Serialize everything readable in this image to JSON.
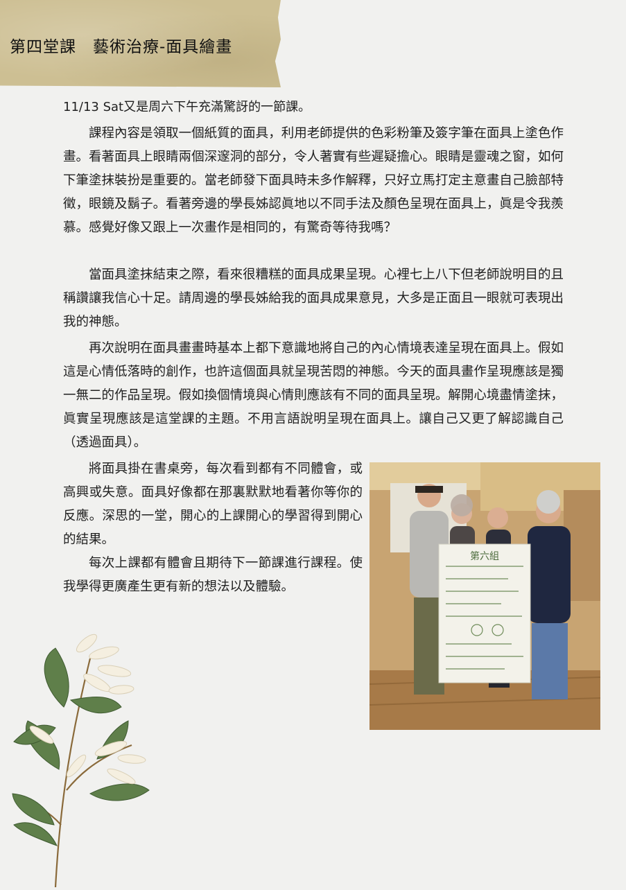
{
  "header": {
    "title": "第四堂課　藝術治療-面具繪畫"
  },
  "content": {
    "date_line": "11/13 Sat又是周六下午充滿驚訝的一節課。",
    "paragraphs": [
      "課程內容是領取一個紙質的面具，利用老師提供的色彩粉筆及簽字筆在面具上塗色作畫。看著面具上眼睛兩個深邃洞的部分，令人著實有些遲疑擔心。眼睛是靈魂之窗，如何下筆塗抹裝扮是重要的。當老師發下面具時未多作解釋，只好立馬打定主意畫自己臉部特徵，眼鏡及鬍子。看著旁邊的學長姊認眞地以不同手法及顏色呈現在面具上，眞是令我羨慕。感覺好像又跟上一次畫作是相同的，有驚奇等待我嗎？",
      "當面具塗抹結束之際，看來很糟糕的面具成果呈現。心裡七上八下但老師說明目的且稱讚讓我信心十足。請周邊的學長姊給我的面具成果意見，大多是正面且一眼就可表現出我的神態。",
      "再次說明在面具畫畫時基本上都下意識地將自己的內心情境表達呈現在面具上。假如這是心情低落時的創作，也許這個面具就呈現苦悶的神態。今天的面具畫作呈現應該是獨一無二的作品呈現。假如換個情境與心情則應該有不同的面具呈現。解開心境盡情塗抹， 眞實呈現應該是這堂課的主題。不用言語說明呈現在面具上。讓自己又更了解認識自己（透過面具）。",
      "將面具掛在書桌旁，每次看到都有不同體會，或高興或失意。面具好像都在那裏默默地看著你等你的反應。深思的一堂，開心的上課開心的學習得到開心的結果。",
      "每次上課都有體會且期待下一節課進行課程。使我學得更廣產生更有新的想法以及體驗。"
    ]
  },
  "poster": {
    "heading": "第六組"
  },
  "colors": {
    "banner": "#cdbf93",
    "background": "#f1f1ef",
    "text": "#1f1f1f",
    "leaf": "#5f7f4a"
  }
}
